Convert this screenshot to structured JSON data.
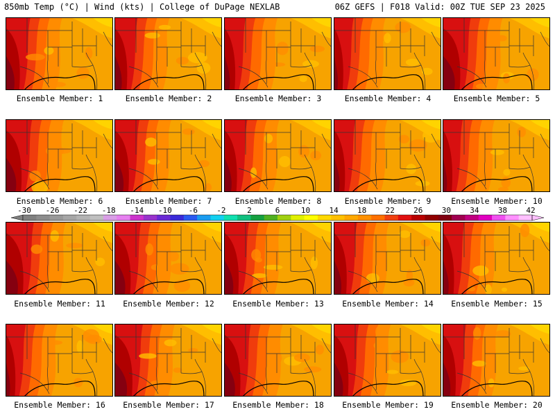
{
  "header": {
    "left": "850mb Temp (°C) | Wind (kts) | College of DuPage NEXLAB",
    "right": "06Z GEFS | F018 Valid: 00Z TUE SEP 23 2025"
  },
  "panels": [
    {
      "caption": "Ensemble Member: 1"
    },
    {
      "caption": "Ensemble Member: 2"
    },
    {
      "caption": "Ensemble Member: 3"
    },
    {
      "caption": "Ensemble Member: 4"
    },
    {
      "caption": "Ensemble Member: 5"
    },
    {
      "caption": "Ensemble Member: 6"
    },
    {
      "caption": "Ensemble Member: 7"
    },
    {
      "caption": "Ensemble Member: 8"
    },
    {
      "caption": "Ensemble Member: 9"
    },
    {
      "caption": "Ensemble Member: 10"
    },
    {
      "caption": "Ensemble Member: 11"
    },
    {
      "caption": "Ensemble Member: 12"
    },
    {
      "caption": "Ensemble Member: 13"
    },
    {
      "caption": "Ensemble Member: 14"
    },
    {
      "caption": "Ensemble Member: 15"
    },
    {
      "caption": "Ensemble Member: 16"
    },
    {
      "caption": "Ensemble Member: 17"
    },
    {
      "caption": "Ensemble Member: 18"
    },
    {
      "caption": "Ensemble Member: 19"
    },
    {
      "caption": "Ensemble Member: 20"
    }
  ],
  "colorbar": {
    "labels": [
      "-30",
      "-26",
      "-22",
      "-18",
      "-14",
      "-10",
      "-6",
      "-2",
      "2",
      "6",
      "10",
      "14",
      "18",
      "22",
      "26",
      "30",
      "34",
      "38",
      "42"
    ],
    "colors": [
      "#808080",
      "#8c8c8c",
      "#999999",
      "#a6a6a6",
      "#b3b3b3",
      "#bfbfbf",
      "#d99ee6",
      "#e680f0",
      "#cc33cc",
      "#9933cc",
      "#6a2ad4",
      "#3a2ad8",
      "#2a5af0",
      "#1a9cf0",
      "#12d0f0",
      "#10e0b0",
      "#10c080",
      "#14a040",
      "#50b020",
      "#a0d010",
      "#e0f000",
      "#ffff00",
      "#ffd800",
      "#ffc000",
      "#ffa800",
      "#ff9000",
      "#ff7000",
      "#f04010",
      "#e01010",
      "#b80000",
      "#900000",
      "#800010",
      "#a00050",
      "#c00080",
      "#e000c0",
      "#f050f0",
      "#ff90ff",
      "#ffc0ff"
    ]
  }
}
